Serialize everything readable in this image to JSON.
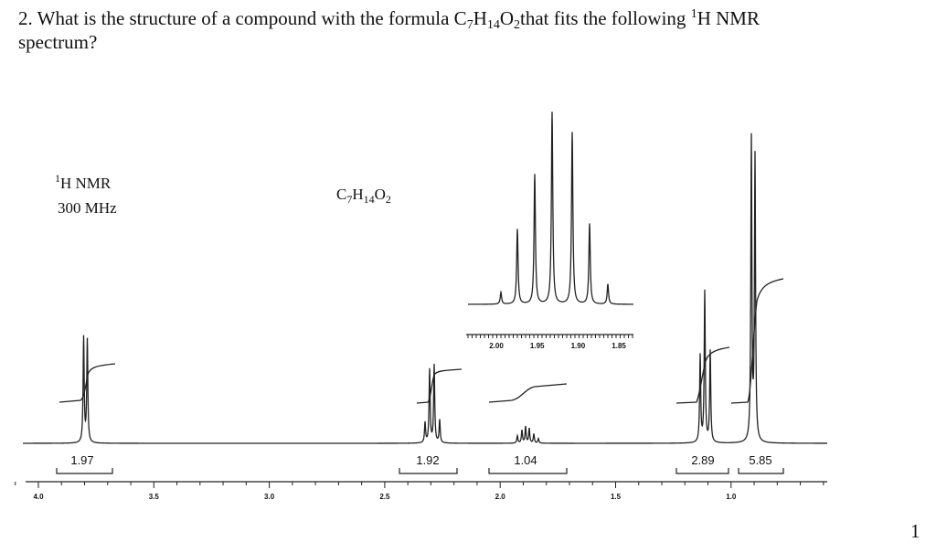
{
  "question": {
    "number": "2.",
    "before": "What is the structure of a compound with the formula",
    "formula": [
      "C",
      "7",
      "H",
      "14",
      "O",
      "2"
    ],
    "middle": "that fits the following",
    "sup": "1",
    "after": "H NMR",
    "line2": "spectrum?"
  },
  "spectrum": {
    "nucleus_sup": "1",
    "nucleus": "H NMR",
    "frequency": "300 MHz",
    "formula": [
      "C",
      "7",
      "H",
      "14",
      "O",
      "2"
    ],
    "axis_labels": [
      "4.0",
      "3.5",
      "3.0",
      "2.5",
      "2.0",
      "1.5",
      "1.0"
    ],
    "inset_labels": [
      "2.00",
      "1.95",
      "1.90",
      "1.85"
    ],
    "integrations": [
      "1.97",
      "1.92",
      "1.04",
      "2.89",
      "5.85"
    ]
  },
  "page_number": "1"
}
